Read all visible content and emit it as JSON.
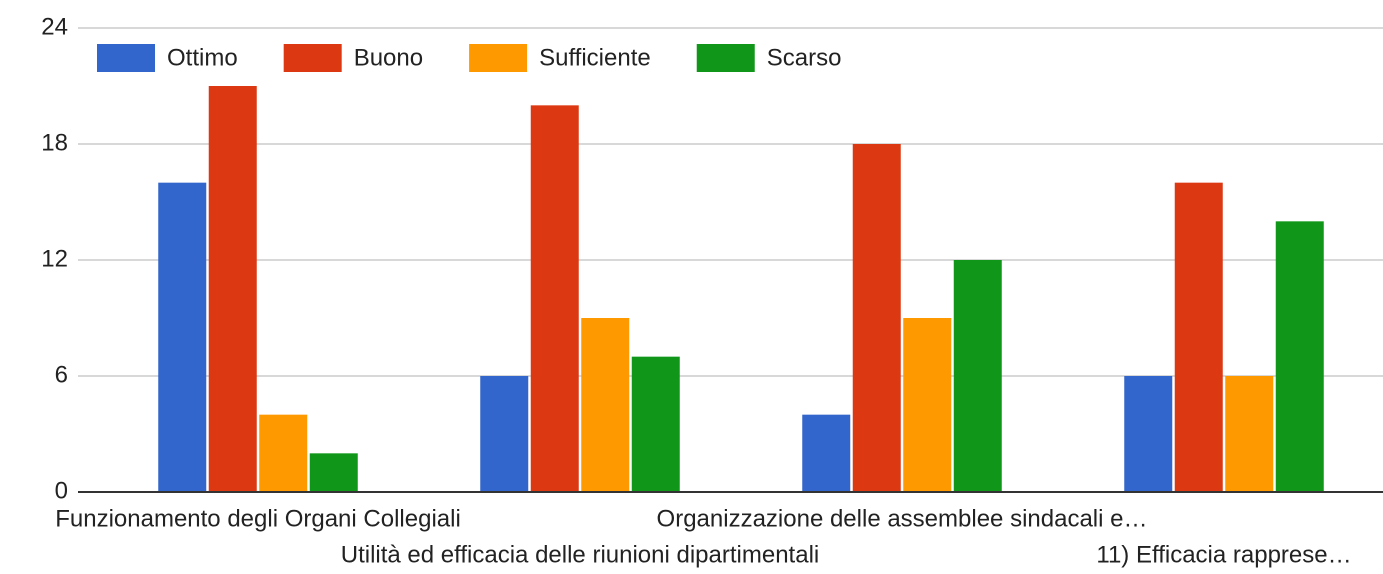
{
  "chart_data": {
    "type": "bar",
    "categories": [
      "Funzionamento degli Organi Collegiali",
      "Utilità ed efficacia delle riunioni dipartimentali",
      "Organizzazione delle assemblee sindacali e…",
      "11) Efficacia rapprese…"
    ],
    "series": [
      {
        "name": "Ottimo",
        "color": "#3366cc",
        "values": [
          16,
          6,
          4,
          6
        ]
      },
      {
        "name": "Buono",
        "color": "#dc3912",
        "values": [
          21,
          20,
          18,
          16
        ]
      },
      {
        "name": "Sufficiente",
        "color": "#ff9900",
        "values": [
          4,
          9,
          9,
          6
        ]
      },
      {
        "name": "Scarso",
        "color": "#109618",
        "values": [
          2,
          7,
          12,
          14
        ]
      }
    ],
    "ylim": [
      0,
      24
    ],
    "yticks": [
      0,
      6,
      12,
      18,
      24
    ],
    "grid": true,
    "legend": "top"
  }
}
